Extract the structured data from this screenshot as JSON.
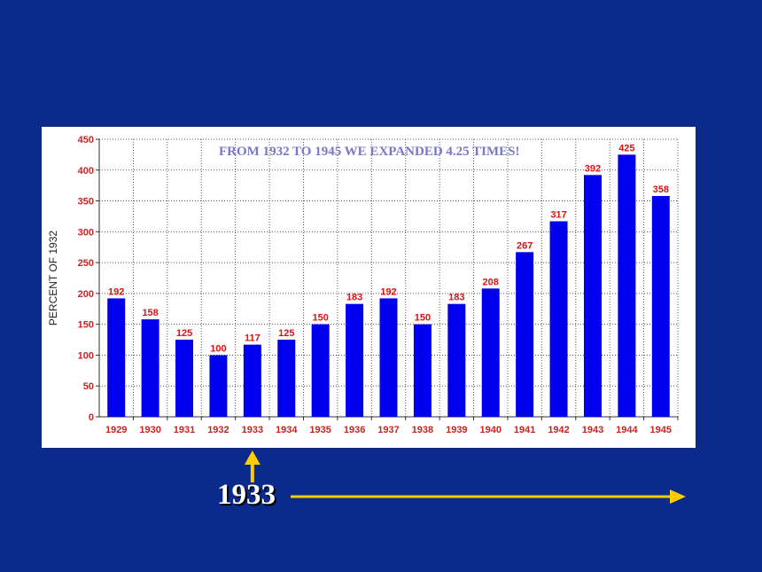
{
  "chart_data": {
    "type": "bar",
    "title": "FROM 1932 TO 1945 WE EXPANDED 4.25 TIMES!",
    "xlabel": "",
    "ylabel": "PERCENT OF 1932",
    "ylim": [
      0,
      450
    ],
    "yticks": [
      0,
      50,
      100,
      150,
      200,
      250,
      300,
      350,
      400,
      450
    ],
    "grid": true,
    "categories": [
      "1929",
      "1930",
      "1931",
      "1932",
      "1933",
      "1934",
      "1935",
      "1936",
      "1937",
      "1938",
      "1939",
      "1940",
      "1941",
      "1942",
      "1943",
      "1944",
      "1945"
    ],
    "values": [
      192,
      158,
      125,
      100,
      117,
      125,
      150,
      183,
      192,
      150,
      183,
      208,
      267,
      317,
      392,
      425,
      358
    ],
    "colors": {
      "bar": "#0000ee",
      "value_label": "#dd1111",
      "title": "#7777cc",
      "axis": "#cc2222"
    }
  },
  "annotation": {
    "label": "1933",
    "points_to": "1933",
    "arrow_color": "#ffcc00"
  }
}
